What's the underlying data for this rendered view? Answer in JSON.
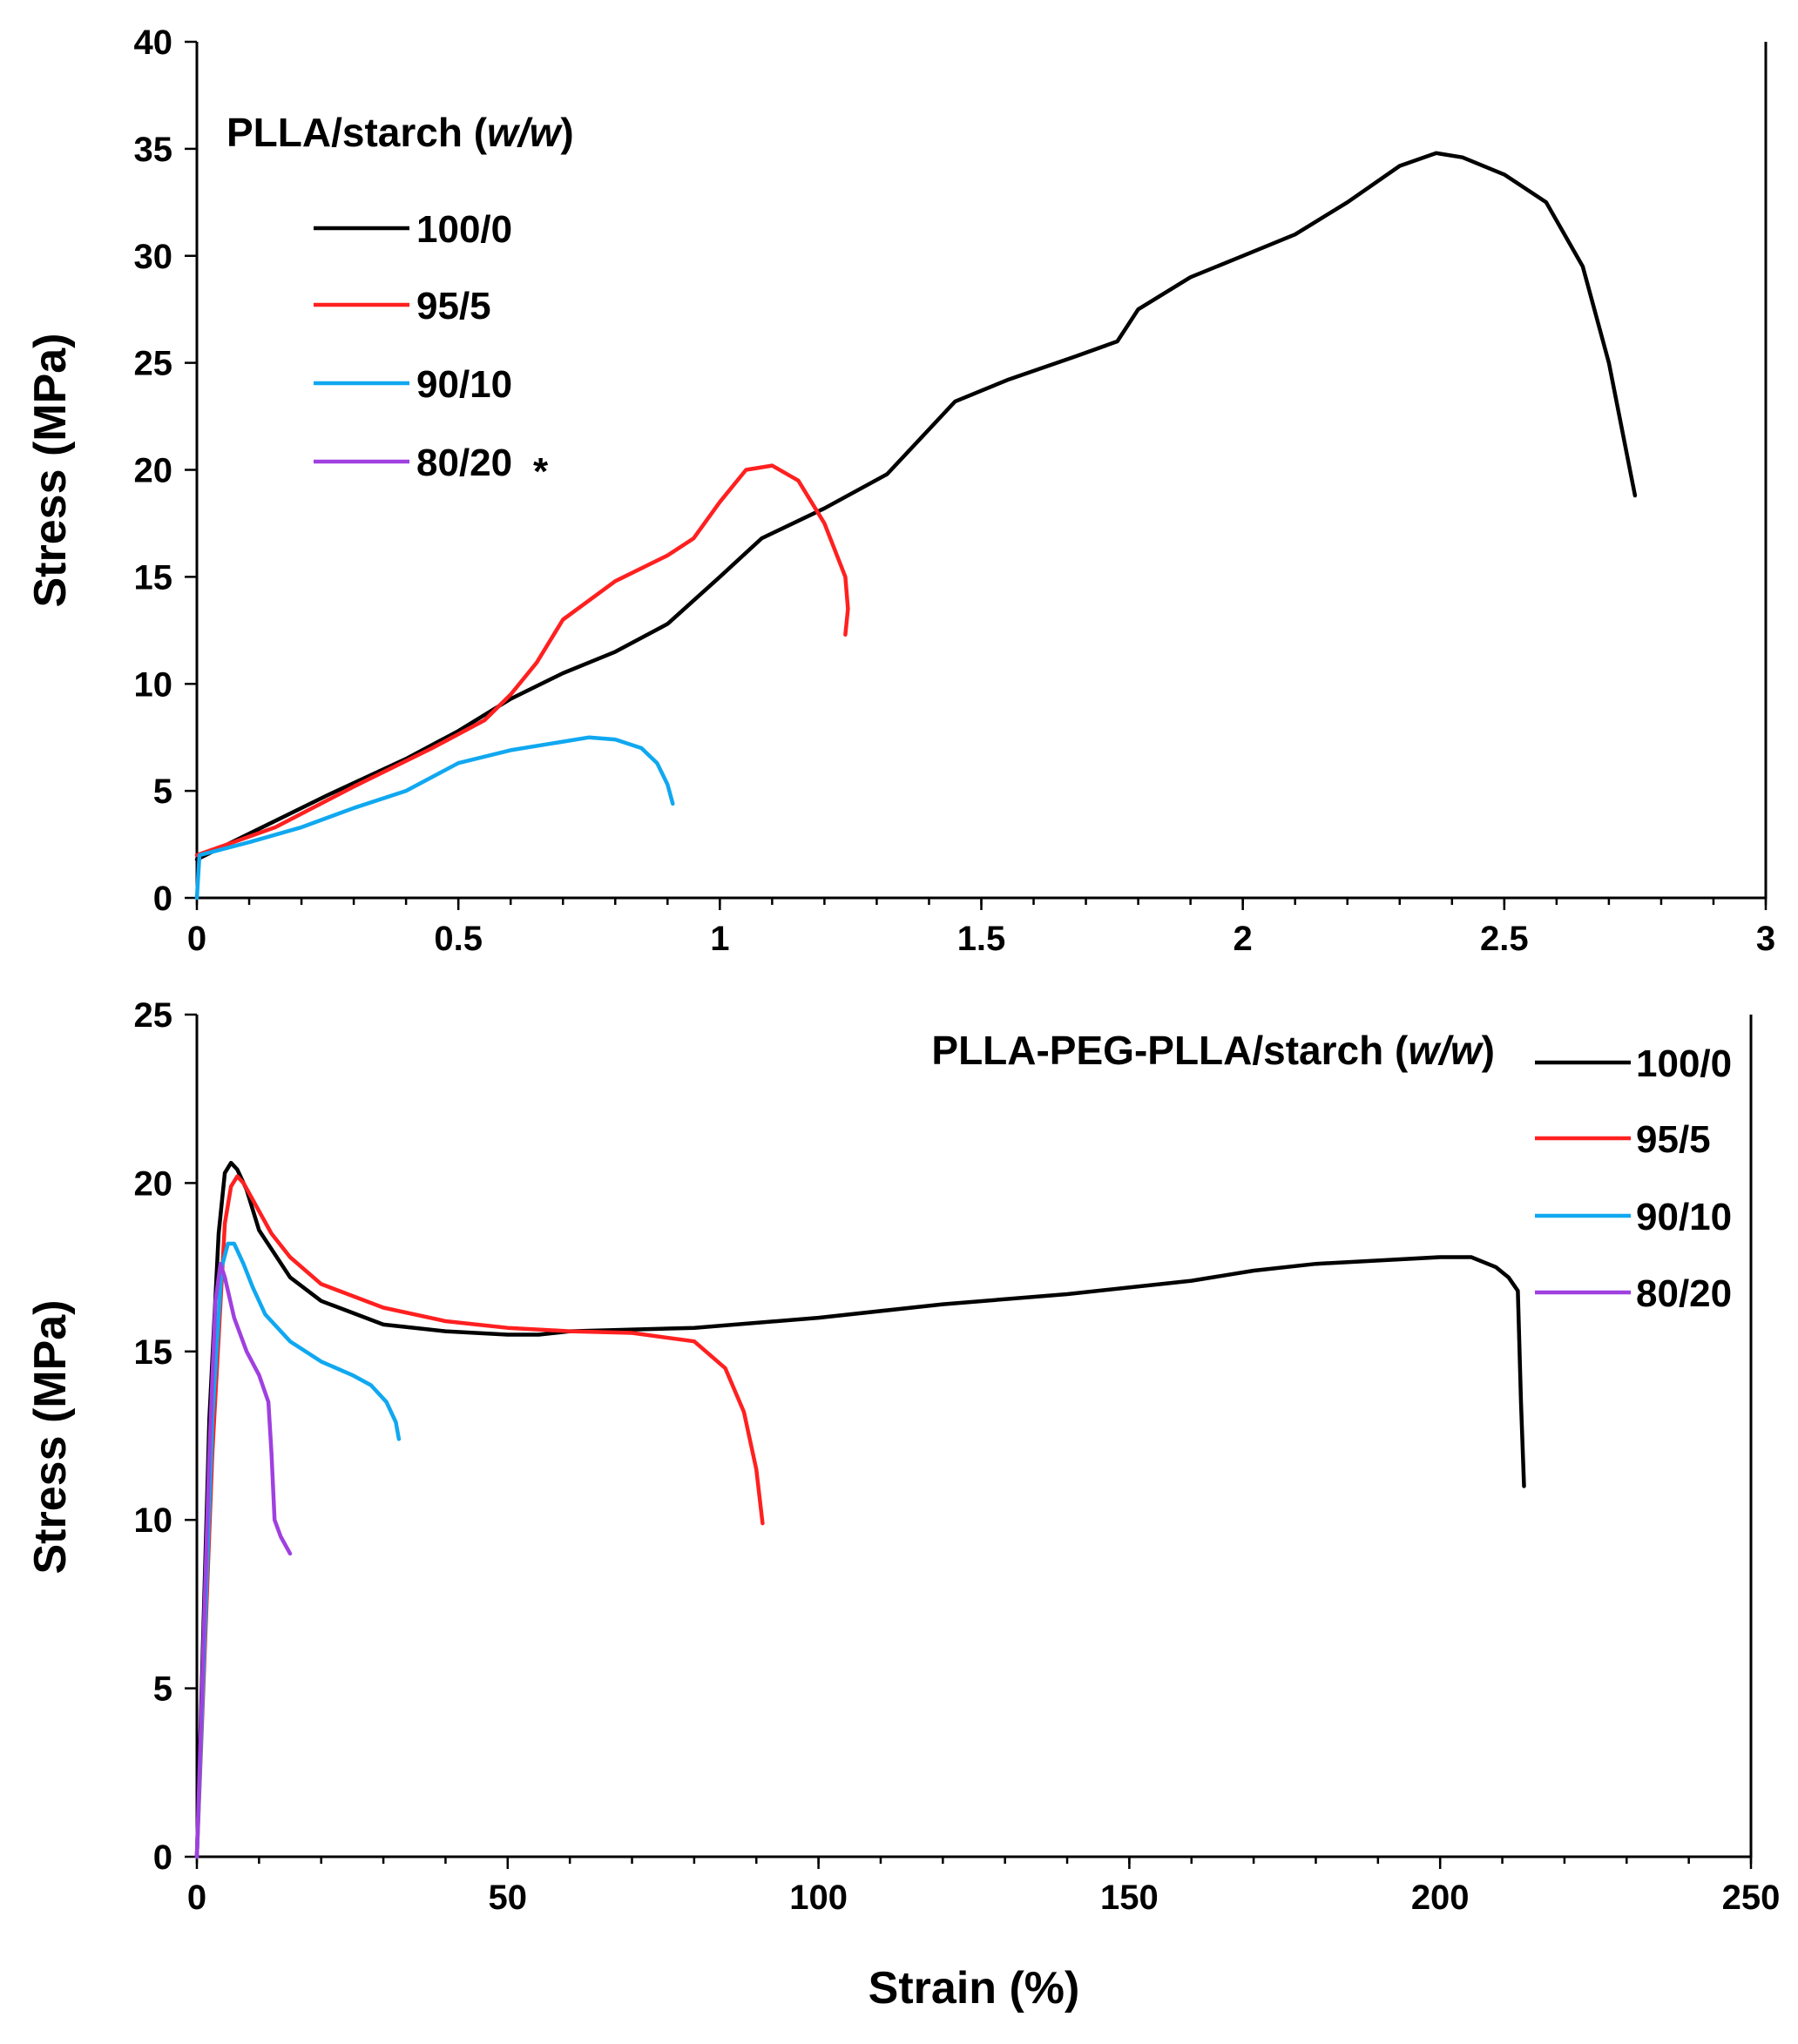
{
  "chart_data": [
    {
      "type": "line",
      "title": "PLLA/starch (w/w)",
      "title_main": "PLLA/starch (",
      "title_italic": "w/w",
      "title_close": ")",
      "xlabel": "",
      "ylabel": "Stress (MPa)",
      "xlim": [
        0,
        3
      ],
      "ylim": [
        0,
        40
      ],
      "x_ticks": [
        0,
        0.5,
        1,
        1.5,
        2,
        2.5,
        3
      ],
      "x_tick_labels": [
        "0",
        "0.5",
        "1",
        "1.5",
        "2",
        "2.5",
        "3"
      ],
      "y_ticks": [
        0,
        5,
        10,
        15,
        20,
        25,
        30,
        35,
        40
      ],
      "y_tick_labels": [
        "0",
        "5",
        "10",
        "15",
        "20",
        "25",
        "30",
        "35",
        "40"
      ],
      "legend_position": "top-left",
      "series": [
        {
          "name": "100/0",
          "color": "#000000",
          "x": [
            0,
            0.1,
            0.25,
            0.4,
            0.5,
            0.6,
            0.7,
            0.8,
            0.9,
            1.0,
            1.08,
            1.2,
            1.32,
            1.45,
            1.55,
            1.68,
            1.76,
            1.8,
            1.9,
            2.0,
            2.1,
            2.2,
            2.3,
            2.37,
            2.42,
            2.5,
            2.58,
            2.65,
            2.7,
            2.75
          ],
          "y": [
            1.8,
            3.0,
            4.8,
            6.5,
            7.8,
            9.3,
            10.5,
            11.5,
            12.8,
            15.0,
            16.8,
            18.2,
            19.8,
            23.2,
            24.2,
            25.3,
            26.0,
            27.5,
            29.0,
            30.0,
            31.0,
            32.5,
            34.2,
            34.8,
            34.6,
            33.8,
            32.5,
            29.5,
            25.0,
            18.8
          ]
        },
        {
          "name": "95/5",
          "color": "#ff2020",
          "x": [
            0,
            0.15,
            0.3,
            0.45,
            0.55,
            0.6,
            0.65,
            0.7,
            0.8,
            0.9,
            0.95,
            1.0,
            1.05,
            1.1,
            1.15,
            1.2,
            1.24,
            1.245,
            1.24
          ],
          "y": [
            2.0,
            3.3,
            5.2,
            7.0,
            8.3,
            9.5,
            11.0,
            13.0,
            14.8,
            16.0,
            16.8,
            18.5,
            20.0,
            20.2,
            19.5,
            17.5,
            15.0,
            13.5,
            12.3
          ]
        },
        {
          "name": "90/10",
          "color": "#10a8f0",
          "x": [
            0,
            0.005,
            0.1,
            0.2,
            0.3,
            0.4,
            0.5,
            0.6,
            0.7,
            0.75,
            0.8,
            0.85,
            0.88,
            0.9,
            0.91
          ],
          "y": [
            0,
            2.0,
            2.6,
            3.3,
            4.2,
            5.0,
            6.3,
            6.9,
            7.3,
            7.5,
            7.4,
            7.0,
            6.3,
            5.3,
            4.4
          ]
        },
        {
          "name": "80/20",
          "color": "#a040e0",
          "x": [],
          "y": []
        }
      ],
      "asterisk": "*"
    },
    {
      "type": "line",
      "title": "PLLA-PEG-PLLA/starch (w/w)",
      "title_main": "PLLA-PEG-PLLA/starch (",
      "title_italic": "w/w",
      "title_close": ")",
      "xlabel": "Strain (%)",
      "ylabel": "Stress (MPa)",
      "xlim": [
        0,
        250
      ],
      "ylim": [
        0,
        25
      ],
      "x_ticks": [
        0,
        50,
        100,
        150,
        200,
        250
      ],
      "x_tick_labels": [
        "0",
        "50",
        "100",
        "150",
        "200",
        "250"
      ],
      "y_ticks": [
        0,
        5,
        10,
        15,
        20,
        25
      ],
      "y_tick_labels": [
        "0",
        "5",
        "10",
        "15",
        "20",
        "25"
      ],
      "legend_position": "top-right",
      "series": [
        {
          "name": "100/0",
          "color": "#000000",
          "x": [
            0,
            2,
            3.5,
            4.5,
            5.5,
            6.5,
            8,
            10,
            15,
            20,
            30,
            40,
            50,
            55,
            60,
            80,
            100,
            120,
            140,
            160,
            170,
            180,
            190,
            200,
            205,
            209,
            211,
            212.5,
            213,
            213.5
          ],
          "y": [
            0,
            13,
            18.5,
            20.3,
            20.6,
            20.4,
            19.8,
            18.6,
            17.2,
            16.5,
            15.8,
            15.6,
            15.5,
            15.5,
            15.6,
            15.7,
            16.0,
            16.4,
            16.7,
            17.1,
            17.4,
            17.6,
            17.7,
            17.8,
            17.8,
            17.5,
            17.2,
            16.8,
            13.5,
            11.0
          ]
        },
        {
          "name": "95/5",
          "color": "#ff2020",
          "x": [
            0,
            2.5,
            4.5,
            5.5,
            6.5,
            7.5,
            9,
            12,
            15,
            20,
            30,
            40,
            50,
            60,
            70,
            80,
            85,
            88,
            90,
            91
          ],
          "y": [
            0,
            12,
            18.8,
            19.9,
            20.2,
            20.0,
            19.5,
            18.5,
            17.8,
            17.0,
            16.3,
            15.9,
            15.7,
            15.6,
            15.55,
            15.3,
            14.5,
            13.2,
            11.5,
            9.9
          ]
        },
        {
          "name": "90/10",
          "color": "#10a8f0",
          "x": [
            0,
            2.5,
            4,
            5,
            6,
            7.5,
            9,
            11,
            15,
            20,
            25,
            28,
            30.5,
            32,
            32.5
          ],
          "y": [
            0,
            13,
            17.5,
            18.2,
            18.2,
            17.6,
            16.9,
            16.1,
            15.3,
            14.7,
            14.3,
            14.0,
            13.5,
            12.9,
            12.4
          ]
        },
        {
          "name": "80/20",
          "color": "#a040e0",
          "x": [
            0,
            2,
            3,
            3.8,
            4.5,
            6,
            8,
            10,
            11.5,
            12,
            12.5,
            13.5,
            15
          ],
          "y": [
            0,
            12,
            16.5,
            17.6,
            17.2,
            16.0,
            15.0,
            14.3,
            13.5,
            12.0,
            10.0,
            9.5,
            9.0
          ]
        }
      ]
    }
  ]
}
